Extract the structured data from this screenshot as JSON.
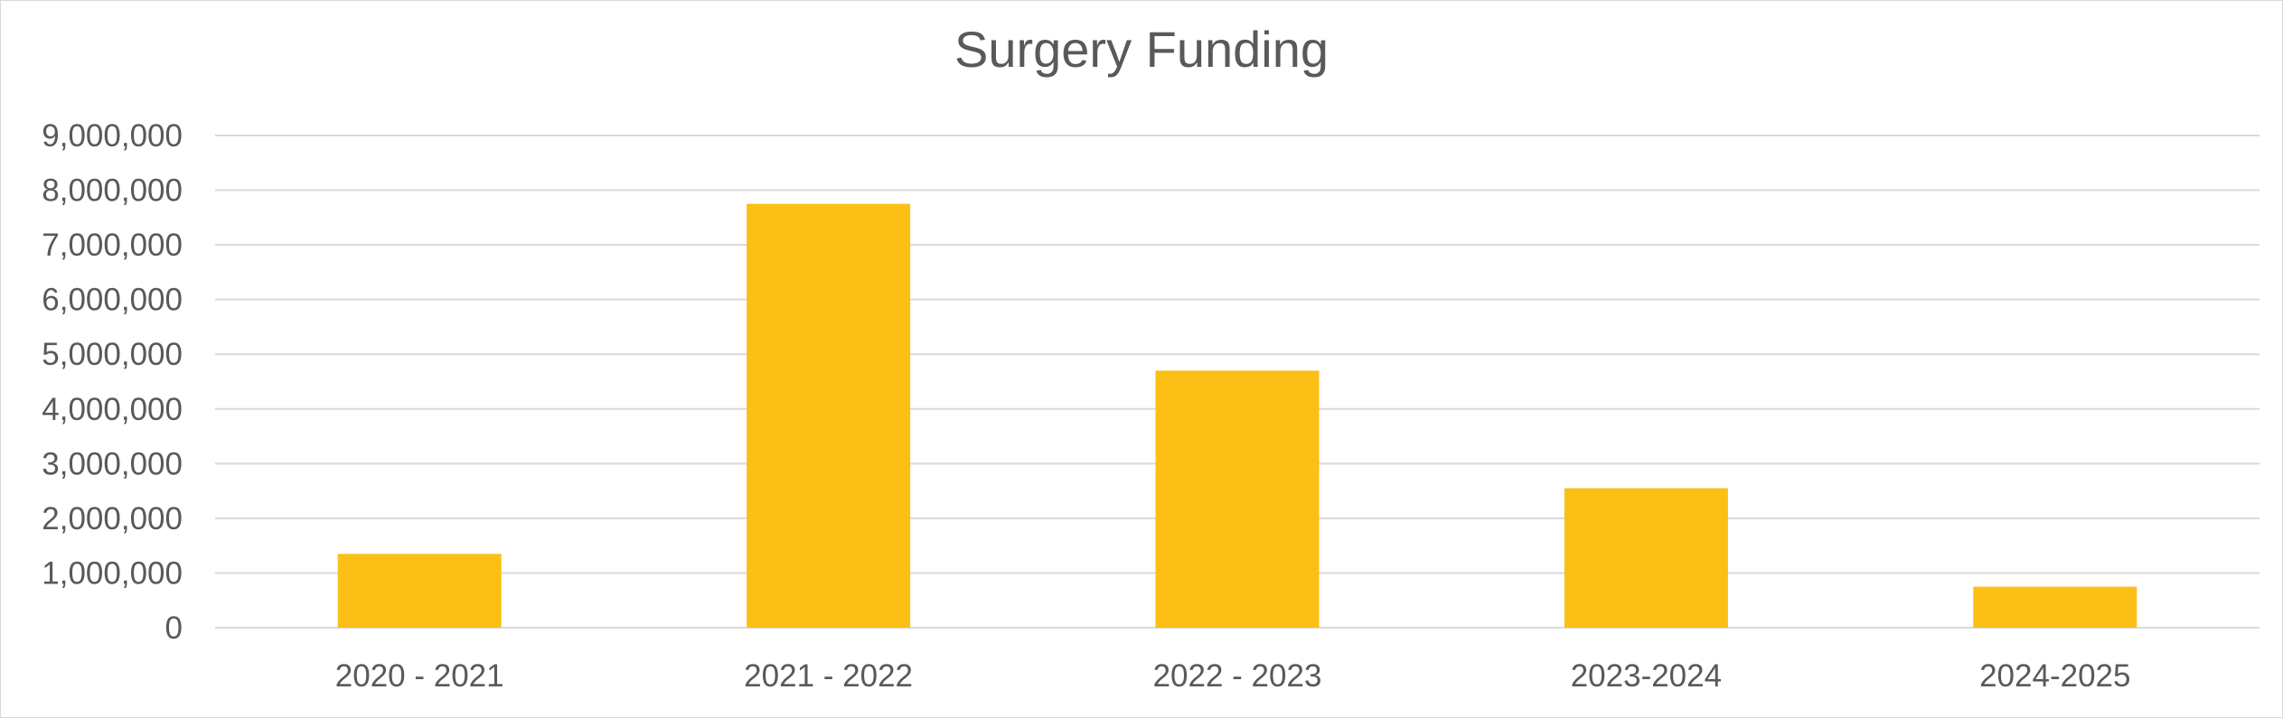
{
  "chart_data": {
    "type": "bar",
    "title": "Surgery Funding",
    "xlabel": "",
    "ylabel": "",
    "categories": [
      "2020 - 2021",
      "2021 - 2022",
      "2022 - 2023",
      "2023-2024",
      "2024-2025"
    ],
    "values": [
      1350000,
      7750000,
      4700000,
      2550000,
      750000
    ],
    "ylim": [
      0,
      9000000
    ],
    "yticks": [
      0,
      1000000,
      2000000,
      3000000,
      4000000,
      5000000,
      6000000,
      7000000,
      8000000,
      9000000
    ],
    "ytick_labels": [
      "0",
      "1,000,000",
      "2,000,000",
      "3,000,000",
      "4,000,000",
      "5,000,000",
      "6,000,000",
      "7,000,000",
      "8,000,000",
      "9,000,000"
    ],
    "bar_color": "#FBBF15",
    "grid": true,
    "legend": "none"
  }
}
